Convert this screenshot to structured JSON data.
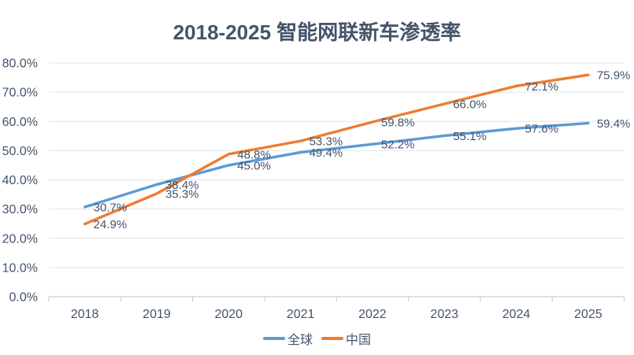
{
  "colors": {
    "global_series": "#5B9BD5",
    "china_series": "#ED7D31",
    "text": "#44546A",
    "grid": "#E2E5EA",
    "axis": "#C9CFD8",
    "background": "#FFFFFF"
  },
  "chart_data": {
    "type": "line",
    "title": "2018-2025 智能网联新车渗透率",
    "categories": [
      "2018",
      "2019",
      "2020",
      "2021",
      "2022",
      "2023",
      "2024",
      "2025"
    ],
    "series": [
      {
        "name": "全球",
        "color": "#5B9BD5",
        "values": [
          30.7,
          38.4,
          45.0,
          49.4,
          52.2,
          55.1,
          57.6,
          59.4
        ],
        "labels": [
          "30.7%",
          "38.4%",
          "45.0%",
          "49.4%",
          "52.2%",
          "55.1%",
          "57.6%",
          "59.4%"
        ]
      },
      {
        "name": "中国",
        "color": "#ED7D31",
        "values": [
          24.9,
          35.3,
          48.8,
          53.3,
          59.8,
          66.0,
          72.1,
          75.9
        ],
        "labels": [
          "24.9%",
          "35.3%",
          "48.8%",
          "53.3%",
          "59.8%",
          "66.0%",
          "72.1%",
          "75.9%"
        ]
      }
    ],
    "xlabel": "",
    "ylabel": "",
    "ylim": [
      0,
      80
    ],
    "ytick_step": 10,
    "ytick_labels": [
      "0.0%",
      "10.0%",
      "20.0%",
      "30.0%",
      "40.0%",
      "50.0%",
      "60.0%",
      "70.0%",
      "80.0%"
    ],
    "grid": true,
    "legend_position": "bottom"
  }
}
